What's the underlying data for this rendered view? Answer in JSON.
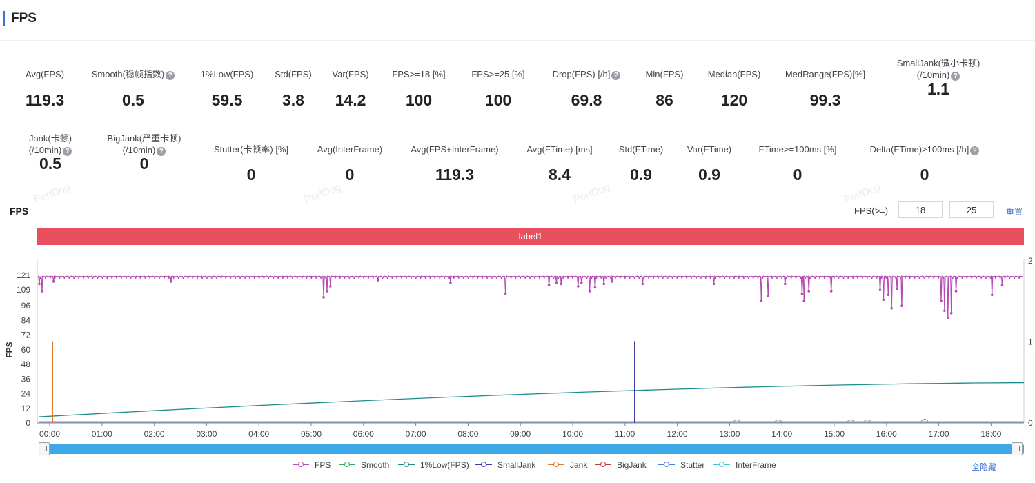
{
  "header": {
    "title": "FPS"
  },
  "stats_row1": [
    {
      "label": "Avg(FPS)",
      "value": "119.3",
      "help": false
    },
    {
      "label": "Smooth(稳帧指数)",
      "value": "0.5",
      "help": true
    },
    {
      "label": "1%Low(FPS)",
      "value": "59.5",
      "help": false
    },
    {
      "label": "Std(FPS)",
      "value": "3.8",
      "help": false
    },
    {
      "label": "Var(FPS)",
      "value": "14.2",
      "help": false
    },
    {
      "label": "FPS>=18 [%]",
      "value": "100",
      "help": false
    },
    {
      "label": "FPS>=25 [%]",
      "value": "100",
      "help": false
    },
    {
      "label": "Drop(FPS) [/h]",
      "value": "69.8",
      "help": true
    },
    {
      "label": "Min(FPS)",
      "value": "86",
      "help": false
    },
    {
      "label": "Median(FPS)",
      "value": "120",
      "help": false
    },
    {
      "label": "MedRange(FPS)[%]",
      "value": "99.3",
      "help": false
    },
    {
      "label": "SmallJank(微小卡顿)",
      "label2": "(/10min)",
      "value": "1.1",
      "help": true
    }
  ],
  "stats_row2": [
    {
      "label": "Jank(卡顿)",
      "label2": "(/10min)",
      "value": "0.5",
      "help": true
    },
    {
      "label": "BigJank(严重卡顿)",
      "label2": "(/10min)",
      "value": "0",
      "help": true
    },
    {
      "label": "Stutter(卡顿率) [%]",
      "value": "0",
      "help": false
    },
    {
      "label": "Avg(InterFrame)",
      "value": "0",
      "help": false
    },
    {
      "label": "Avg(FPS+InterFrame)",
      "value": "119.3",
      "help": false
    },
    {
      "label": "Avg(FTime) [ms]",
      "value": "8.4",
      "help": false
    },
    {
      "label": "Std(FTime)",
      "value": "0.9",
      "help": false
    },
    {
      "label": "Var(FTime)",
      "value": "0.9",
      "help": false
    },
    {
      "label": "FTime>=100ms [%]",
      "value": "0",
      "help": false
    },
    {
      "label": "Delta(FTime)>100ms [/h]",
      "value": "0",
      "help": true
    }
  ],
  "chart_section": {
    "title": "FPS",
    "threshold_label": "FPS(>=)",
    "threshold_1": "18",
    "threshold_2": "25",
    "reset_label": "重置",
    "label_bar": "label1",
    "hide_all_label": "全隐藏",
    "watermark": "PerfDog"
  },
  "chart_data": {
    "type": "line",
    "ylabel": "FPS",
    "y_ticks": [
      0,
      12,
      24,
      36,
      48,
      60,
      72,
      84,
      96,
      109,
      121
    ],
    "y_right_ticks": [
      0,
      1,
      2
    ],
    "ylim": [
      0,
      130
    ],
    "x_ticks": [
      "00:00",
      "01:00",
      "02:00",
      "03:00",
      "04:00",
      "05:00",
      "06:00",
      "07:00",
      "08:00",
      "09:00",
      "10:00",
      "11:00",
      "12:00",
      "13:00",
      "14:00",
      "15:00",
      "16:00",
      "17:00",
      "18:00"
    ],
    "xlim_minutes": [
      0,
      1115
    ],
    "series": [
      {
        "name": "FPS",
        "color": "#b54cb5",
        "baseline": 120,
        "dips": [
          [
            1,
            114
          ],
          [
            5,
            108
          ],
          [
            22,
            116
          ],
          [
            195,
            116
          ],
          [
            420,
            103
          ],
          [
            425,
            108
          ],
          [
            430,
            112
          ],
          [
            500,
            117
          ],
          [
            607,
            115
          ],
          [
            688,
            106
          ],
          [
            752,
            113
          ],
          [
            763,
            115
          ],
          [
            770,
            114
          ],
          [
            795,
            112
          ],
          [
            800,
            115
          ],
          [
            812,
            108
          ],
          [
            820,
            111
          ],
          [
            833,
            114
          ],
          [
            845,
            116
          ],
          [
            890,
            114
          ],
          [
            995,
            114
          ],
          [
            1065,
            100
          ],
          [
            1075,
            104
          ],
          [
            1100,
            114
          ],
          [
            1125,
            106
          ],
          [
            1128,
            100
          ],
          [
            1135,
            108
          ],
          [
            1168,
            108
          ],
          [
            1240,
            109
          ],
          [
            1245,
            101
          ],
          [
            1252,
            105
          ],
          [
            1257,
            94
          ],
          [
            1265,
            110
          ],
          [
            1272,
            96
          ],
          [
            1330,
            100
          ],
          [
            1335,
            92
          ],
          [
            1340,
            86
          ],
          [
            1345,
            90
          ],
          [
            1352,
            108
          ],
          [
            1405,
            105
          ],
          [
            1420,
            113
          ]
        ]
      },
      {
        "name": "Smooth",
        "color": "#3aa657"
      },
      {
        "name": "1%Low(FPS)",
        "color": "#1f8c8c",
        "start": 5,
        "end": 33
      },
      {
        "name": "SmallJank",
        "color": "#3d3d9e",
        "spikes": [
          [
            682,
            67
          ]
        ]
      },
      {
        "name": "Jank",
        "color": "#e07a2f",
        "spikes": [
          [
            15,
            67
          ]
        ]
      },
      {
        "name": "BigJank",
        "color": "#c23b3b"
      },
      {
        "name": "Stutter",
        "color": "#4a7fd6"
      },
      {
        "name": "InterFrame",
        "color": "#4cc3d9"
      }
    ]
  }
}
